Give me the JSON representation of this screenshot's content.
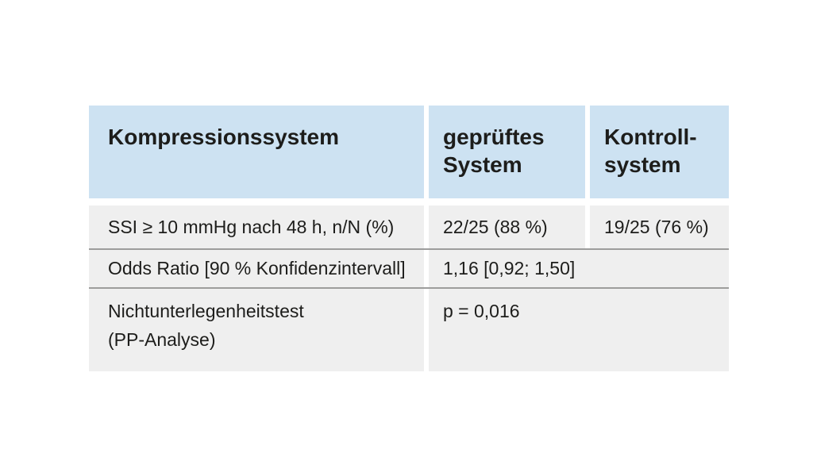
{
  "colors": {
    "header_bg": "#cde2f2",
    "row_bg": "#efefef",
    "divider": "#9d9d9c",
    "text": "#1d1d1b",
    "page_bg": "#ffffff"
  },
  "table": {
    "header": [
      {
        "label": "Kompressionssystem"
      },
      {
        "label": "geprüftes\nSystem"
      },
      {
        "label": "Kontroll-\nsystem"
      }
    ],
    "rows": [
      {
        "label": "SSI ≥ 10 mmHg nach 48 h, n/N (%)",
        "tested": "22/25 (88 %)",
        "control": "19/25 (76 %)"
      },
      {
        "label": "Odds Ratio [90 % Konfidenzintervall]",
        "value": "1,16 [0,92; 1,50]"
      },
      {
        "label": "Nichtunterlegenheitstest\n(PP-Analyse)",
        "value": "p = 0,016"
      }
    ]
  }
}
